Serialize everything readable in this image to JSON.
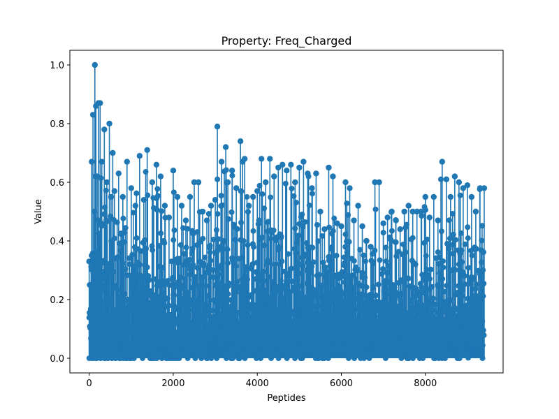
{
  "chart_data": {
    "type": "stem",
    "title": "Property: Freq_Charged",
    "xlabel": "Peptides",
    "ylabel": "Value",
    "xlim": [
      -460,
      9850
    ],
    "ylim": [
      -0.05,
      1.05
    ],
    "x_ticks": [
      0,
      2000,
      4000,
      6000,
      8000
    ],
    "x_tick_labels": [
      "0",
      "2000",
      "4000",
      "6000",
      "8000"
    ],
    "y_ticks": [
      0.0,
      0.2,
      0.4,
      0.6,
      0.8,
      1.0
    ],
    "y_tick_labels": [
      "0.0",
      "0.2",
      "0.4",
      "0.6",
      "0.8",
      "1.0"
    ],
    "n_points": 9400,
    "color": "#1f77b4",
    "grid": false,
    "legend": "none",
    "series": [
      {
        "x": [
          0,
          20,
          60,
          90,
          120,
          135,
          160,
          190,
          220,
          260,
          300,
          360,
          420,
          480,
          520,
          560,
          600,
          700,
          800,
          900,
          1000,
          1100,
          1200,
          1300,
          1380,
          1500,
          1600,
          1700,
          1800,
          1900,
          2000,
          2100,
          2200,
          2300,
          2400,
          2500,
          2600,
          2700,
          2800,
          2900,
          3000,
          3050,
          3150,
          3250,
          3300,
          3400,
          3500,
          3600,
          3650,
          3700,
          3800,
          3900,
          4000,
          4100,
          4200,
          4300,
          4400,
          4500,
          4600,
          4700,
          4800,
          4900,
          5000,
          5100,
          5200,
          5300,
          5400,
          5500,
          5600,
          5700,
          5800,
          5900,
          6000,
          6100,
          6200,
          6300,
          6400,
          6500,
          6600,
          6700,
          6800,
          6900,
          7000,
          7100,
          7200,
          7300,
          7400,
          7500,
          7600,
          7700,
          7800,
          7900,
          8000,
          8100,
          8200,
          8300,
          8400,
          8500,
          8600,
          8700,
          8800,
          8900,
          9000,
          9100,
          9200,
          9300,
          9400
        ],
        "y": [
          0.33,
          0.25,
          0.67,
          0.83,
          0.5,
          1.0,
          0.86,
          0.62,
          0.87,
          0.87,
          0.67,
          0.78,
          0.6,
          0.8,
          0.55,
          0.7,
          0.57,
          0.63,
          0.55,
          0.67,
          0.58,
          0.52,
          0.69,
          0.54,
          0.71,
          0.6,
          0.66,
          0.62,
          0.52,
          0.48,
          0.64,
          0.55,
          0.52,
          0.47,
          0.55,
          0.6,
          0.6,
          0.5,
          0.47,
          0.52,
          0.54,
          0.79,
          0.67,
          0.72,
          0.6,
          0.64,
          0.58,
          0.74,
          0.67,
          0.68,
          0.52,
          0.55,
          0.57,
          0.68,
          0.6,
          0.68,
          0.62,
          0.65,
          0.66,
          0.64,
          0.66,
          0.6,
          0.65,
          0.67,
          0.63,
          0.58,
          0.63,
          0.5,
          0.44,
          0.65,
          0.62,
          0.46,
          0.45,
          0.6,
          0.58,
          0.47,
          0.52,
          0.45,
          0.4,
          0.38,
          0.6,
          0.6,
          0.46,
          0.48,
          0.5,
          0.47,
          0.44,
          0.5,
          0.52,
          0.5,
          0.5,
          0.5,
          0.55,
          0.48,
          0.55,
          0.47,
          0.67,
          0.61,
          0.55,
          0.62,
          0.6,
          0.58,
          0.59,
          0.55,
          0.5,
          0.58,
          0.58
        ]
      }
    ]
  }
}
